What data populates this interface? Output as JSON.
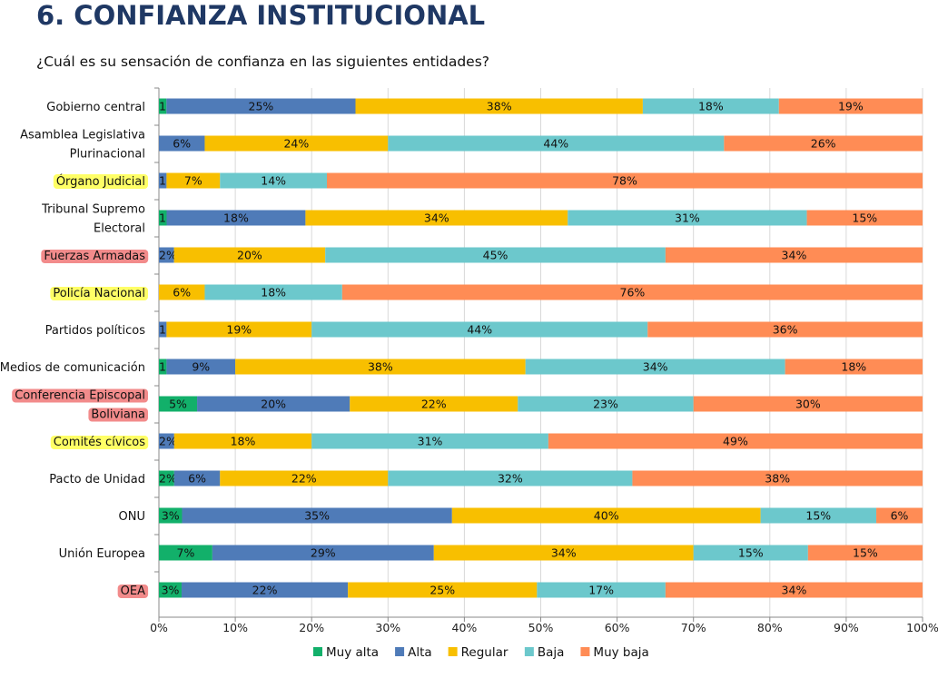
{
  "header": {
    "title": "6.   CONFIANZA INSTITUCIONAL",
    "subtitle": "¿Cuál es su sensación de confianza en las siguientes entidades?"
  },
  "chart_data": {
    "type": "bar",
    "orientation": "horizontal",
    "stacked": "percent",
    "xlim": [
      0,
      100
    ],
    "x_ticks": [
      "0%",
      "10%",
      "20%",
      "30%",
      "40%",
      "50%",
      "60%",
      "70%",
      "80%",
      "90%",
      "100%"
    ],
    "grid": true,
    "legend_position": "bottom",
    "categories": [
      {
        "label": [
          "Gobierno central"
        ],
        "highlight": null
      },
      {
        "label": [
          "Asamblea Legislativa",
          "Plurinacional"
        ],
        "highlight": null
      },
      {
        "label": [
          "Órgano Judicial"
        ],
        "highlight": "#ffff66"
      },
      {
        "label": [
          "Tribunal Supremo",
          "Electoral"
        ],
        "highlight": null
      },
      {
        "label": [
          "Fuerzas Armadas"
        ],
        "highlight": "#f28b8b"
      },
      {
        "label": [
          "Policía Nacional"
        ],
        "highlight": "#ffff66"
      },
      {
        "label": [
          "Partidos políticos"
        ],
        "highlight": null
      },
      {
        "label": [
          "Medios de comunicación"
        ],
        "highlight": null
      },
      {
        "label": [
          "Conferencia Episcopal",
          "Boliviana"
        ],
        "highlight": "#f28b8b"
      },
      {
        "label": [
          "Comités cívicos"
        ],
        "highlight": "#ffff66"
      },
      {
        "label": [
          "Pacto de Unidad"
        ],
        "highlight": null
      },
      {
        "label": [
          "ONU"
        ],
        "highlight": null
      },
      {
        "label": [
          "Unión Europea"
        ],
        "highlight": null
      },
      {
        "label": [
          "OEA"
        ],
        "highlight": "#f28b8b"
      }
    ],
    "series": [
      {
        "name": "Muy alta",
        "color": "#12b06a",
        "values": [
          1,
          0,
          0,
          1,
          0,
          0,
          0,
          1,
          5,
          0,
          2,
          3,
          7,
          3
        ]
      },
      {
        "name": "Alta",
        "color": "#4f7bb8",
        "values": [
          25,
          6,
          1,
          18,
          2,
          0,
          1,
          9,
          20,
          2,
          6,
          35,
          29,
          22
        ]
      },
      {
        "name": "Regular",
        "color": "#f8bf00",
        "values": [
          38,
          24,
          7,
          34,
          20,
          6,
          19,
          38,
          22,
          18,
          22,
          40,
          34,
          25
        ]
      },
      {
        "name": "Baja",
        "color": "#6cc8cc",
        "values": [
          18,
          44,
          14,
          31,
          45,
          18,
          44,
          34,
          23,
          31,
          32,
          15,
          15,
          17
        ]
      },
      {
        "name": "Muy baja",
        "color": "#ff8c55",
        "values": [
          19,
          26,
          78,
          15,
          34,
          76,
          36,
          18,
          30,
          49,
          38,
          6,
          15,
          34
        ]
      }
    ]
  }
}
